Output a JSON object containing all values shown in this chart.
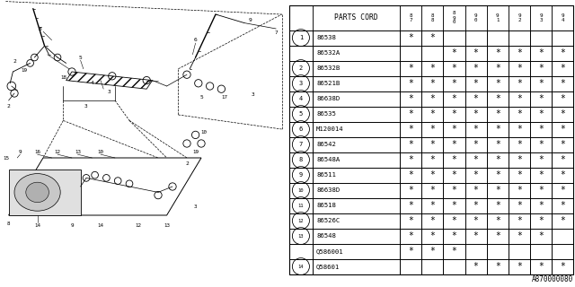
{
  "bg_color": "#ffffff",
  "col_header": "PARTS CORD",
  "year_cols": [
    "8\n7",
    "8\n8",
    "8\n9\n0",
    "9\n0",
    "9\n1",
    "9\n2",
    "9\n3",
    "9\n4"
  ],
  "rows": [
    {
      "num": "1",
      "part": "86538",
      "marks": [
        1,
        1,
        0,
        0,
        0,
        0,
        0,
        0
      ],
      "span": false
    },
    {
      "num": "2",
      "part": "86532A",
      "marks": [
        0,
        0,
        1,
        1,
        1,
        1,
        1,
        1
      ],
      "span": true,
      "span_start": true
    },
    {
      "num": "2",
      "part": "86532B",
      "marks": [
        1,
        1,
        1,
        1,
        1,
        1,
        1,
        1
      ],
      "span": true,
      "span_start": false
    },
    {
      "num": "3",
      "part": "86521B",
      "marks": [
        1,
        1,
        1,
        1,
        1,
        1,
        1,
        1
      ],
      "span": false
    },
    {
      "num": "4",
      "part": "86638D",
      "marks": [
        1,
        1,
        1,
        1,
        1,
        1,
        1,
        1
      ],
      "span": false
    },
    {
      "num": "5",
      "part": "86535",
      "marks": [
        1,
        1,
        1,
        1,
        1,
        1,
        1,
        1
      ],
      "span": false
    },
    {
      "num": "6",
      "part": "M120014",
      "marks": [
        1,
        1,
        1,
        1,
        1,
        1,
        1,
        1
      ],
      "span": false
    },
    {
      "num": "7",
      "part": "86542",
      "marks": [
        1,
        1,
        1,
        1,
        1,
        1,
        1,
        1
      ],
      "span": false
    },
    {
      "num": "8",
      "part": "86548A",
      "marks": [
        1,
        1,
        1,
        1,
        1,
        1,
        1,
        1
      ],
      "span": false
    },
    {
      "num": "9",
      "part": "86511",
      "marks": [
        1,
        1,
        1,
        1,
        1,
        1,
        1,
        1
      ],
      "span": false
    },
    {
      "num": "10",
      "part": "86638D",
      "marks": [
        1,
        1,
        1,
        1,
        1,
        1,
        1,
        1
      ],
      "span": false
    },
    {
      "num": "11",
      "part": "86518",
      "marks": [
        1,
        1,
        1,
        1,
        1,
        1,
        1,
        1
      ],
      "span": false
    },
    {
      "num": "12",
      "part": "86526C",
      "marks": [
        1,
        1,
        1,
        1,
        1,
        1,
        1,
        1
      ],
      "span": false
    },
    {
      "num": "13",
      "part": "86548",
      "marks": [
        1,
        1,
        1,
        1,
        1,
        1,
        1,
        0
      ],
      "span": false
    },
    {
      "num": "14",
      "part": "Q586001",
      "marks": [
        1,
        1,
        1,
        0,
        0,
        0,
        0,
        0
      ],
      "span": true,
      "span_start": true
    },
    {
      "num": "14",
      "part": "Q58601",
      "marks": [
        0,
        0,
        0,
        1,
        1,
        1,
        1,
        1
      ],
      "span": true,
      "span_start": false
    }
  ],
  "footnote": "A870000080"
}
